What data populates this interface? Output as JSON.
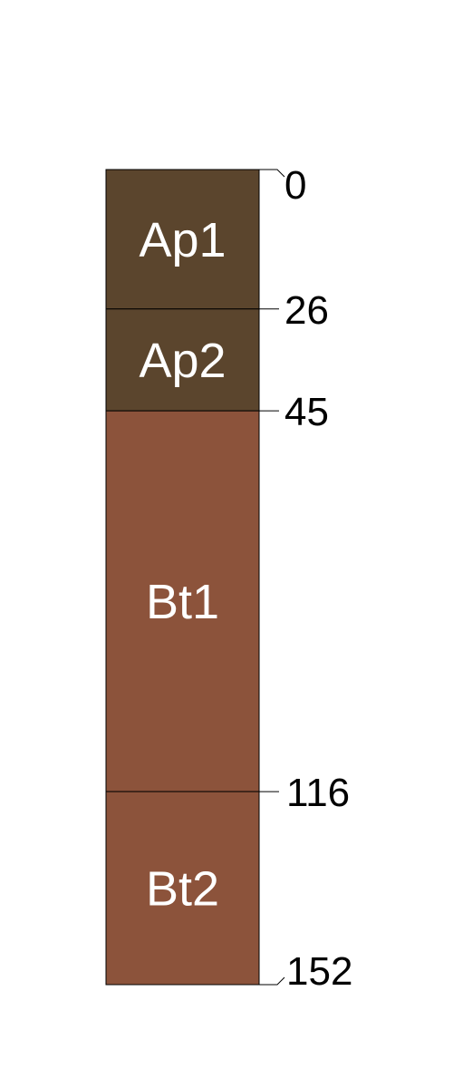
{
  "profile": {
    "max_depth": 152,
    "horizons": [
      {
        "name": "Ap1",
        "top": 0,
        "bottom": 26,
        "color": "#5b452d"
      },
      {
        "name": "Ap2",
        "top": 26,
        "bottom": 45,
        "color": "#5b452d"
      },
      {
        "name": "Bt1",
        "top": 45,
        "bottom": 116,
        "color": "#8c533b"
      },
      {
        "name": "Bt2",
        "top": 116,
        "bottom": 152,
        "color": "#8c533b"
      }
    ],
    "depth_labels": [
      "0",
      "26",
      "45",
      "116",
      "152"
    ]
  }
}
